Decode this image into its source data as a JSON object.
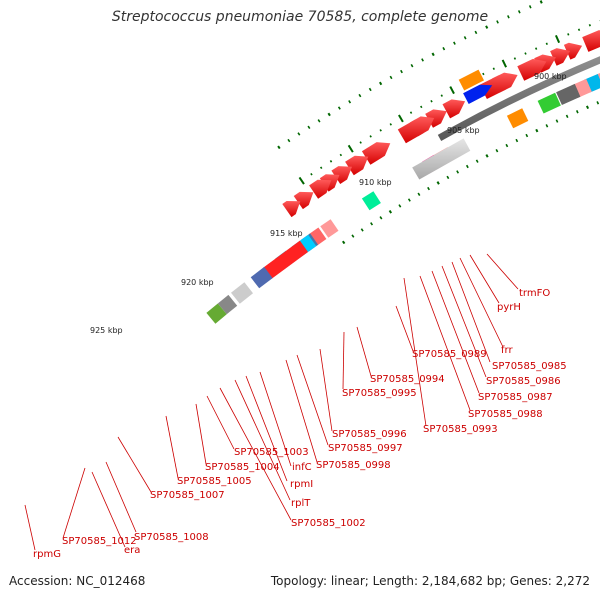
{
  "title": "Streptococcus pneumoniae 70585, complete genome",
  "footer": {
    "accession": "Accession: NC_012468",
    "summary": "Topology: linear; Length: 2,184,682 bp; Genes: 2,272"
  },
  "scale_labels": [
    "900 kbp",
    "905 kbp",
    "910 kbp",
    "915 kbp",
    "920 kbp",
    "925 kbp"
  ],
  "gene_labels": [
    "trmFO",
    "pyrH",
    "frr",
    "SP70585_0985",
    "SP70585_0986",
    "SP70585_0987",
    "SP70585_0988",
    "SP70585_0989",
    "SP70585_0993",
    "SP70585_0994",
    "SP70585_0995",
    "SP70585_0996",
    "SP70585_0997",
    "SP70585_0998",
    "infC",
    "rpmI",
    "rplT",
    "SP70585_1002",
    "SP70585_1003",
    "SP70585_1004",
    "SP70585_1005",
    "SP70585_1007",
    "SP70585_1008",
    "SP70585_1012",
    "era",
    "rpmG"
  ],
  "colors": {
    "forward_gene": "#ee0000",
    "backbone": "#888888",
    "scale_tick": "#006600",
    "label_line": "#cc0000"
  }
}
